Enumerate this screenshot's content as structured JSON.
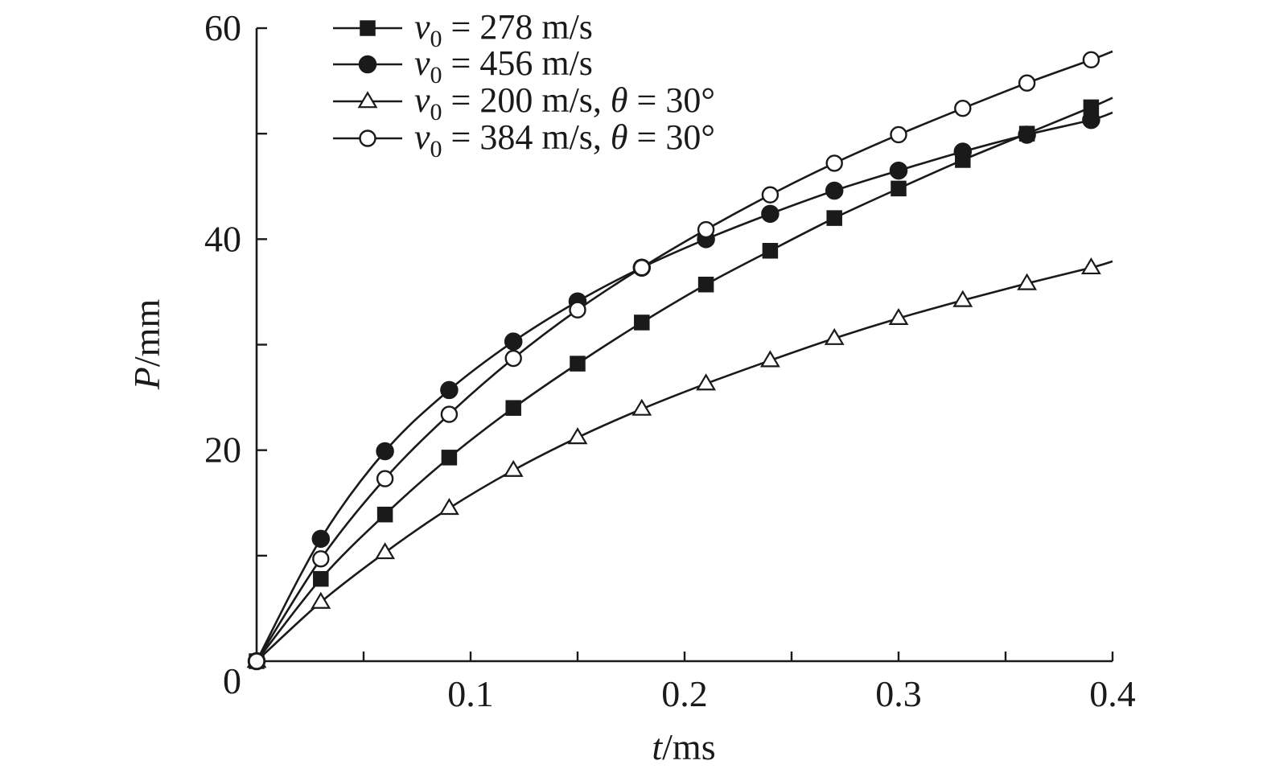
{
  "chart_data": {
    "type": "line",
    "title": "",
    "xlabel": {
      "var": "t",
      "unit": "/ms"
    },
    "ylabel": {
      "var": "P",
      "unit": "/mm"
    },
    "xlim": [
      0,
      0.4
    ],
    "ylim": [
      0,
      60
    ],
    "grid": false,
    "legend_position": "top-left",
    "x_ticks": [
      {
        "value": 0,
        "label": ""
      },
      {
        "value": 0.05,
        "label": ""
      },
      {
        "value": 0.1,
        "label": "0.1"
      },
      {
        "value": 0.15,
        "label": ""
      },
      {
        "value": 0.2,
        "label": "0.2"
      },
      {
        "value": 0.25,
        "label": ""
      },
      {
        "value": 0.3,
        "label": "0.3"
      },
      {
        "value": 0.35,
        "label": ""
      },
      {
        "value": 0.4,
        "label": "0.4"
      }
    ],
    "y_ticks": [
      {
        "value": 0,
        "label": "0"
      },
      {
        "value": 10,
        "label": ""
      },
      {
        "value": 20,
        "label": "20"
      },
      {
        "value": 30,
        "label": ""
      },
      {
        "value": 40,
        "label": "40"
      },
      {
        "value": 50,
        "label": ""
      },
      {
        "value": 60,
        "label": "60"
      }
    ],
    "x": [
      0,
      0.03,
      0.06,
      0.09,
      0.12,
      0.15,
      0.18,
      0.21,
      0.24,
      0.27,
      0.3,
      0.33,
      0.36,
      0.39
    ],
    "series": [
      {
        "name": "v0 = 278 m/s",
        "legend": {
          "sym": "v",
          "sub": "0",
          "rest": " = 278 m/s"
        },
        "marker": "square-filled",
        "values": [
          0,
          7.8,
          13.9,
          19.3,
          24.0,
          28.2,
          32.1,
          35.7,
          38.9,
          42.0,
          44.8,
          47.5,
          50.0,
          52.5
        ],
        "end": [
          0.4,
          53.4
        ]
      },
      {
        "name": "v0 = 456 m/s",
        "legend": {
          "sym": "v",
          "sub": "0",
          "rest": " = 456 m/s"
        },
        "marker": "circle-filled",
        "values": [
          0,
          11.6,
          19.9,
          25.7,
          30.3,
          34.1,
          37.3,
          40.0,
          42.4,
          44.6,
          46.5,
          48.3,
          49.9,
          51.3
        ],
        "end": [
          0.4,
          52.0
        ]
      },
      {
        "name": "v0 = 200 m/s, θ = 30°",
        "legend": {
          "sym": "v",
          "sub": "0",
          "rest": " = 200 m/s, ",
          "theta": "θ",
          "rest2": " = 30°"
        },
        "marker": "triangle-open",
        "values": [
          0,
          5.6,
          10.3,
          14.5,
          18.1,
          21.2,
          23.9,
          26.3,
          28.5,
          30.6,
          32.5,
          34.2,
          35.8,
          37.3
        ],
        "end": [
          0.4,
          37.9
        ]
      },
      {
        "name": "v0 = 384 m/s, θ = 30°",
        "legend": {
          "sym": "v",
          "sub": "0",
          "rest": " = 384 m/s, ",
          "theta": "θ",
          "rest2": " = 30°"
        },
        "marker": "circle-open",
        "values": [
          0,
          9.7,
          17.3,
          23.4,
          28.7,
          33.3,
          37.3,
          40.9,
          44.2,
          47.2,
          49.9,
          52.4,
          54.8,
          57.0
        ],
        "end": [
          0.4,
          57.8
        ]
      }
    ]
  }
}
